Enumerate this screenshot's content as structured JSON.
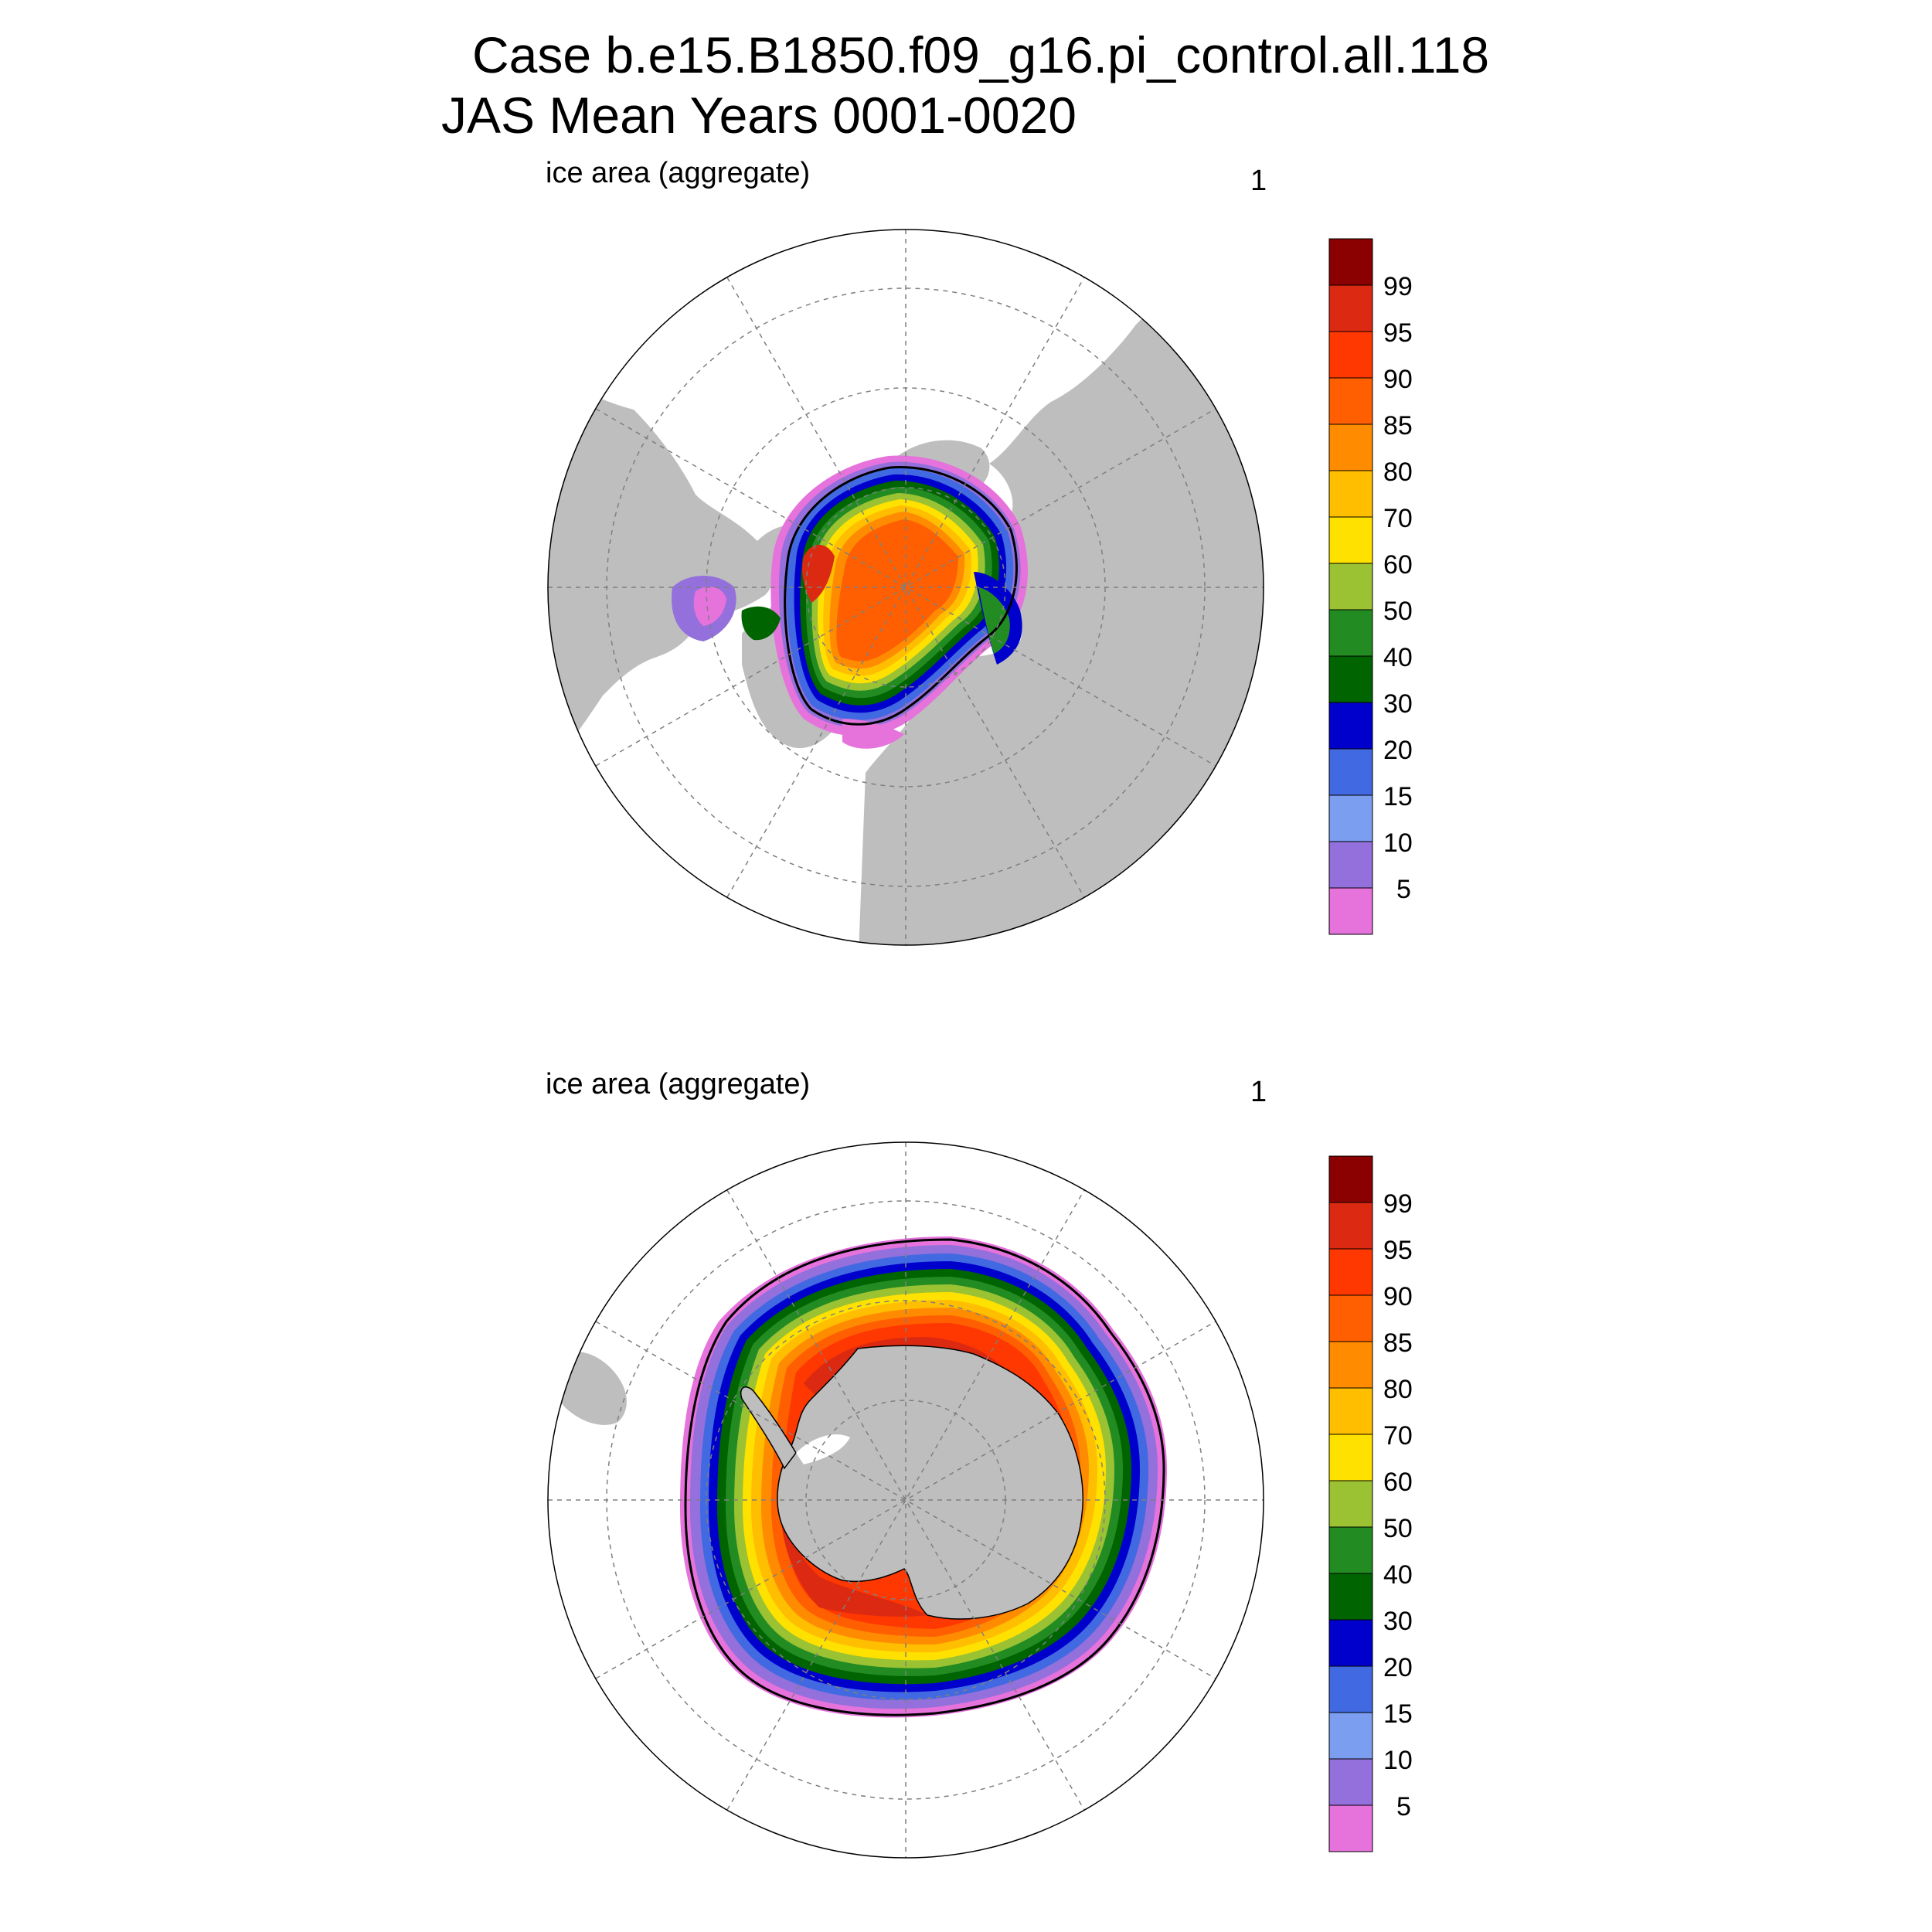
{
  "title": {
    "line1": "Case b.e15.B1850.f09_g16.pi_control.all.118",
    "line2": "JAS Mean    Years 0001-0020"
  },
  "panels": [
    {
      "id": "north",
      "label": "ice area  (aggregate)",
      "number": "1",
      "hemisphere": "north"
    },
    {
      "id": "south",
      "label": "ice area  (aggregate)",
      "number": "1",
      "hemisphere": "south"
    }
  ],
  "colorbar": {
    "levels": [
      "99",
      "95",
      "90",
      "85",
      "80",
      "70",
      "60",
      "50",
      "40",
      "30",
      "20",
      "15",
      "10",
      "5"
    ],
    "colors": [
      "#8b0000",
      "#dc2a12",
      "#ff3700",
      "#ff5f00",
      "#ff8c00",
      "#ffbe00",
      "#ffe100",
      "#9ac232",
      "#228b22",
      "#006400",
      "#0000cd",
      "#4169e1",
      "#7b9ef0",
      "#9370db",
      "#e672dc"
    ]
  },
  "colors": {
    "land": "#bebebe",
    "ocean": "#ffffff",
    "gridline": "#7f7f7f",
    "contour": "#000000"
  }
}
